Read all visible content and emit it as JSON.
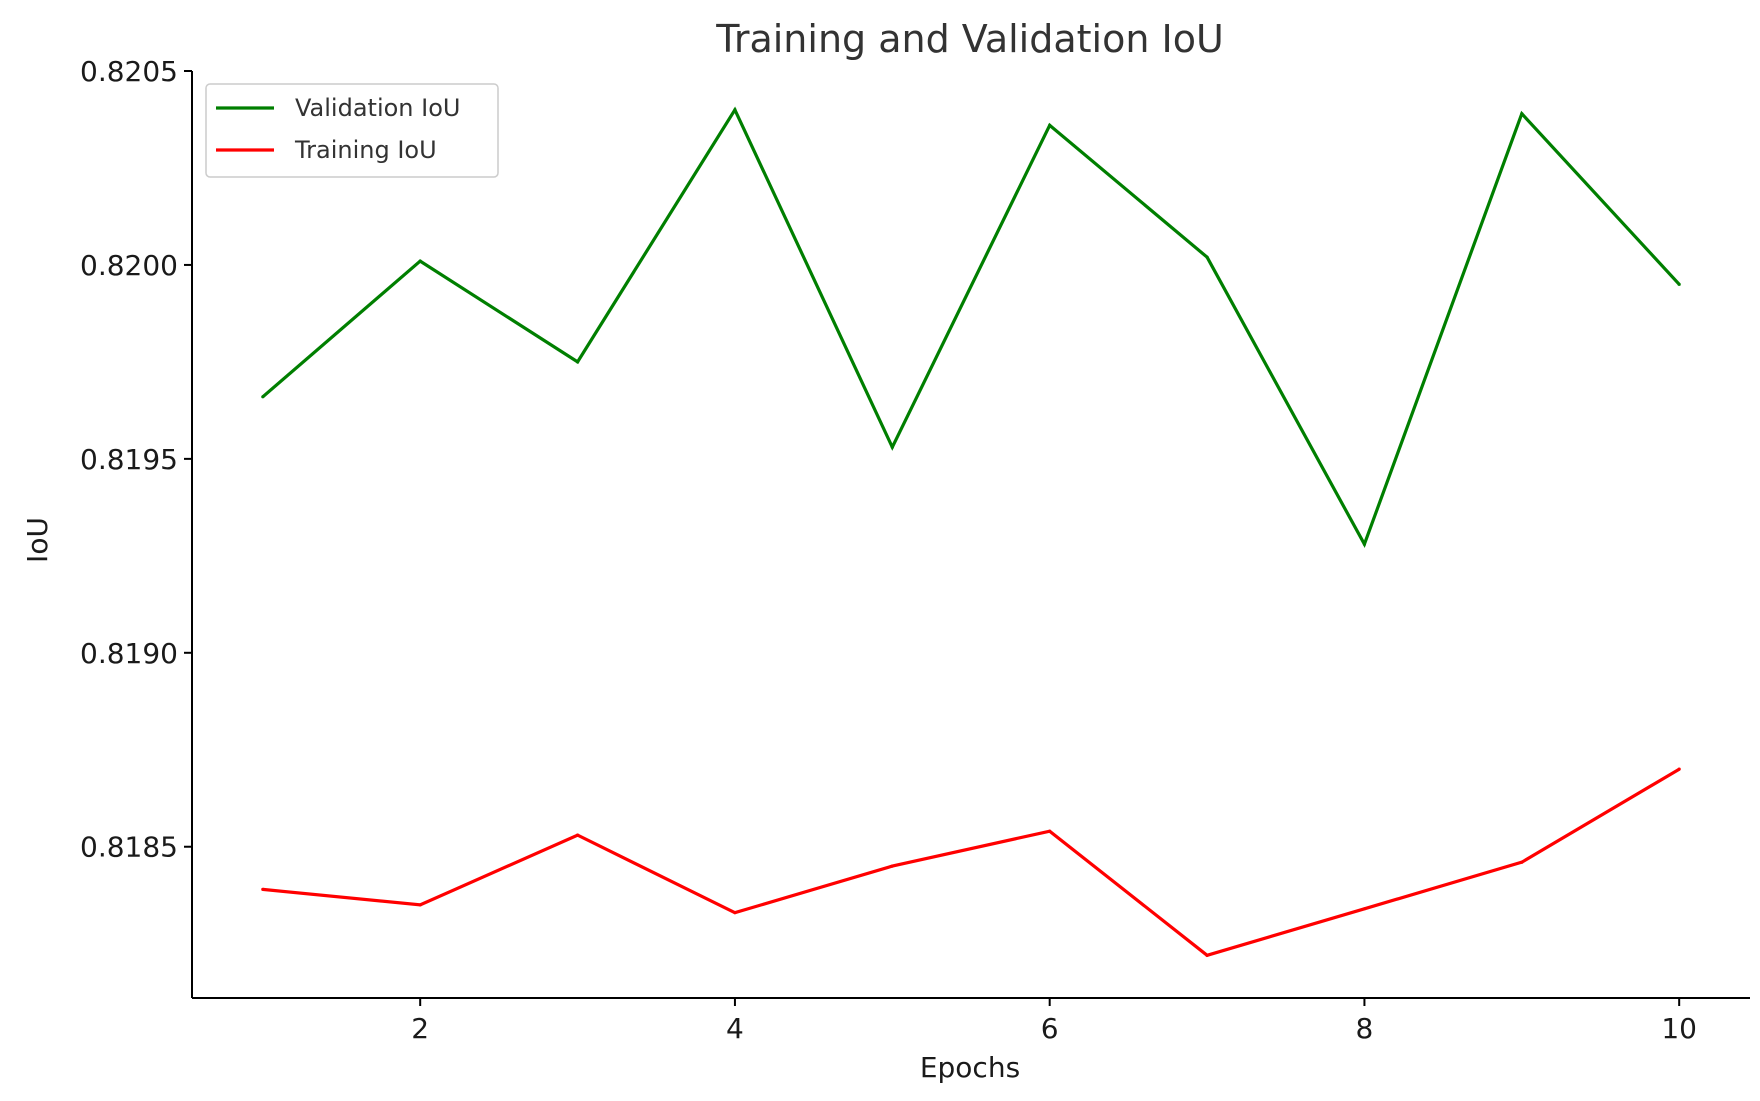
{
  "chart_data": {
    "type": "line",
    "title": "Training and Validation IoU",
    "xlabel": "Epochs",
    "ylabel": "IoU",
    "x": [
      1,
      2,
      3,
      4,
      5,
      6,
      7,
      8,
      9,
      10
    ],
    "xlim": [
      0.55,
      10.45
    ],
    "ylim": [
      0.81811,
      0.8205
    ],
    "xticks": [
      2,
      4,
      6,
      8,
      10
    ],
    "xtick_labels": [
      "2",
      "4",
      "6",
      "8",
      "10"
    ],
    "yticks": [
      0.8185,
      0.819,
      0.8195,
      0.82,
      0.8205
    ],
    "ytick_labels": [
      "0.8185",
      "0.8190",
      "0.8195",
      "0.8200",
      "0.8205"
    ],
    "grid": false,
    "legend_position": "upper-left",
    "series": [
      {
        "name": "Validation IoU",
        "color": "#007f00",
        "values": [
          0.81966,
          0.82001,
          0.81975,
          0.8204,
          0.81953,
          0.82036,
          0.82002,
          0.81928,
          0.82039,
          0.81995
        ]
      },
      {
        "name": "Training IoU",
        "color": "#ff0000",
        "values": [
          0.81839,
          0.81835,
          0.81853,
          0.81833,
          0.81845,
          0.81854,
          0.81822,
          0.81834,
          0.81846,
          0.8187
        ]
      }
    ]
  }
}
